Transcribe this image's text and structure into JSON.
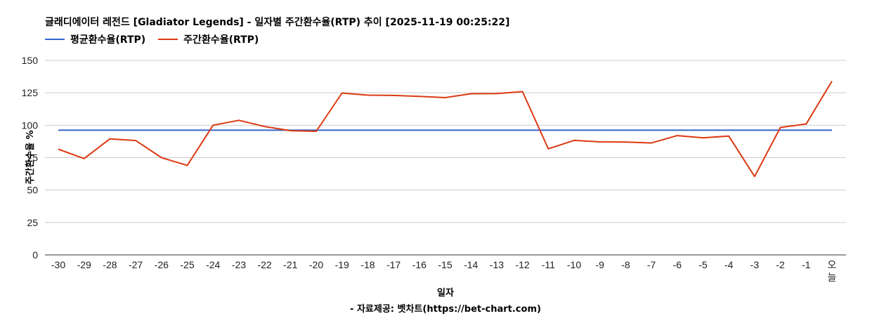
{
  "chart_data": {
    "type": "line",
    "title": "글래디에이터 레전드 [Gladiator Legends] - 일자별 주간환수율(RTP) 추이 [2025-11-19 00:25:22]",
    "xlabel": "일자",
    "ylabel": "주간환수율 %",
    "source": "- 자료제공: 벳차트(https://bet-chart.com)",
    "ylim": [
      0,
      150
    ],
    "yticks": [
      "0",
      "25",
      "50",
      "75",
      "100",
      "125",
      "150"
    ],
    "grid": true,
    "legend_position": "top-left",
    "categories": [
      "-30",
      "-29",
      "-28",
      "-27",
      "-26",
      "-25",
      "-24",
      "-23",
      "-22",
      "-21",
      "-20",
      "-19",
      "-18",
      "-17",
      "-16",
      "-15",
      "-14",
      "-13",
      "-12",
      "-11",
      "-10",
      "-9",
      "-8",
      "-7",
      "-6",
      "-5",
      "-4",
      "-3",
      "-2",
      "-1",
      "오늘"
    ],
    "series": [
      {
        "name": "평균환수율(RTP)",
        "color": "#3366cc",
        "values": [
          96.2,
          96.2,
          96.2,
          96.2,
          96.2,
          96.2,
          96.2,
          96.2,
          96.2,
          96.2,
          96.2,
          96.2,
          96.2,
          96.2,
          96.2,
          96.2,
          96.2,
          96.2,
          96.2,
          96.2,
          96.2,
          96.2,
          96.2,
          96.2,
          96.2,
          96.2,
          96.2,
          96.2,
          96.2,
          96.2,
          96.2
        ]
      },
      {
        "name": "주간환수율(RTP)",
        "color": "#dc3912",
        "values": [
          81.5,
          74.3,
          89.5,
          88.2,
          75.0,
          69.0,
          100.0,
          103.8,
          99.0,
          95.8,
          95.3,
          124.8,
          123.2,
          123.0,
          122.2,
          121.3,
          124.3,
          124.4,
          125.9,
          81.8,
          88.3,
          87.2,
          87.1,
          86.3,
          92.0,
          90.3,
          91.6,
          60.5,
          98.3,
          101.0,
          134.0
        ]
      }
    ]
  }
}
